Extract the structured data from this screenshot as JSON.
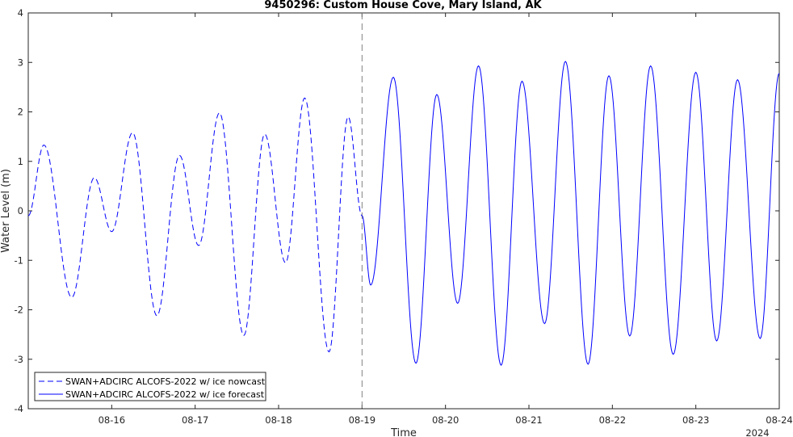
{
  "chart_data": {
    "type": "line",
    "title": "9450296: Custom House Cove, Mary Island, AK",
    "xlabel": "Time",
    "ylabel": "Water Level (m)",
    "year_label": "2024",
    "xlim": [
      "2024-08-15T00:00",
      "2024-08-24T00:00"
    ],
    "ylim": [
      -4,
      4
    ],
    "xticks": [
      {
        "at": "2024-08-16",
        "label": "08-16"
      },
      {
        "at": "2024-08-17",
        "label": "08-17"
      },
      {
        "at": "2024-08-18",
        "label": "08-18"
      },
      {
        "at": "2024-08-19",
        "label": "08-19"
      },
      {
        "at": "2024-08-20",
        "label": "08-20"
      },
      {
        "at": "2024-08-21",
        "label": "08-21"
      },
      {
        "at": "2024-08-22",
        "label": "08-22"
      },
      {
        "at": "2024-08-23",
        "label": "08-23"
      },
      {
        "at": "2024-08-24",
        "label": "08-24"
      }
    ],
    "yticks": [
      -4,
      -3,
      -2,
      -1,
      0,
      1,
      2,
      3,
      4
    ],
    "nowcast_forecast_divider": "2024-08-19T00:00",
    "legend_position": "bottom-left",
    "colors": {
      "series": "#0000ff",
      "divider": "#808080",
      "axes": "#262626"
    },
    "series": [
      {
        "name": "SWAN+ADCIRC ALCOFS-2022 w/ ice nowcast",
        "style": "dashed",
        "points": [
          [
            "2024-08-15T00:00",
            -0.1
          ],
          [
            "2024-08-15T04:30",
            1.33
          ],
          [
            "2024-08-15T12:30",
            -1.75
          ],
          [
            "2024-08-15T19:00",
            0.67
          ],
          [
            "2024-08-16T00:00",
            -0.42
          ],
          [
            "2024-08-16T06:00",
            1.58
          ],
          [
            "2024-08-16T13:00",
            -2.12
          ],
          [
            "2024-08-16T19:30",
            1.12
          ],
          [
            "2024-08-17T01:00",
            -0.7
          ],
          [
            "2024-08-17T07:00",
            1.98
          ],
          [
            "2024-08-17T14:00",
            -2.52
          ],
          [
            "2024-08-17T20:00",
            1.55
          ],
          [
            "2024-08-18T02:00",
            -1.05
          ],
          [
            "2024-08-18T07:30",
            2.28
          ],
          [
            "2024-08-18T14:30",
            -2.85
          ],
          [
            "2024-08-18T20:00",
            1.9
          ],
          [
            "2024-08-19T00:00",
            -0.1
          ]
        ]
      },
      {
        "name": "SWAN+ADCIRC ALCOFS-2022 w/ ice forecast",
        "style": "solid",
        "points": [
          [
            "2024-08-19T00:00",
            -0.1
          ],
          [
            "2024-08-19T02:30",
            -1.5
          ],
          [
            "2024-08-19T09:00",
            2.7
          ],
          [
            "2024-08-19T15:30",
            -3.08
          ],
          [
            "2024-08-19T21:30",
            2.35
          ],
          [
            "2024-08-20T03:30",
            -1.87
          ],
          [
            "2024-08-20T09:30",
            2.93
          ],
          [
            "2024-08-20T16:00",
            -3.12
          ],
          [
            "2024-08-20T22:00",
            2.62
          ],
          [
            "2024-08-21T04:30",
            -2.28
          ],
          [
            "2024-08-21T10:30",
            3.02
          ],
          [
            "2024-08-21T17:00",
            -3.1
          ],
          [
            "2024-08-21T23:00",
            2.73
          ],
          [
            "2024-08-22T05:00",
            -2.53
          ],
          [
            "2024-08-22T11:00",
            2.93
          ],
          [
            "2024-08-22T17:30",
            -2.9
          ],
          [
            "2024-08-23T00:00",
            2.8
          ],
          [
            "2024-08-23T06:00",
            -2.63
          ],
          [
            "2024-08-23T12:00",
            2.65
          ],
          [
            "2024-08-23T18:30",
            -2.58
          ],
          [
            "2024-08-24T00:00",
            2.78
          ]
        ]
      }
    ]
  }
}
